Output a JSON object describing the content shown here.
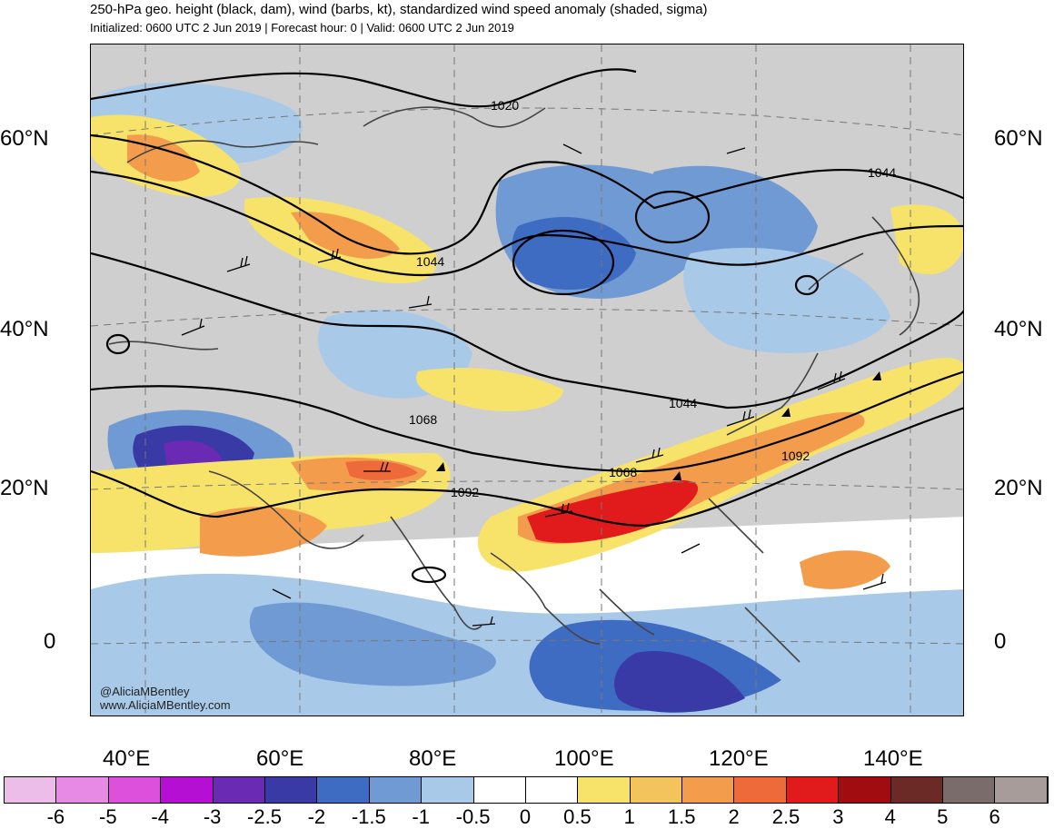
{
  "header": {
    "title": "250-hPa geo. height (black, dam), wind (barbs, kt), standardized wind speed anomaly (shaded, sigma)",
    "subtitle": "Initialized: 0600 UTC 2 Jun 2019 | Forecast hour: 0 | Valid: 0600 UTC 2 Jun 2019"
  },
  "axes": {
    "lat_labels": [
      "60°N",
      "40°N",
      "20°N",
      "0"
    ],
    "lon_labels": [
      "40°E",
      "60°E",
      "80°E",
      "100°E",
      "120°E",
      "140°E"
    ]
  },
  "contours": {
    "labels": [
      "1020",
      "1044",
      "1044",
      "1044",
      "1068",
      "1068",
      "1092",
      "1092"
    ]
  },
  "credit": {
    "handle": "@AliciaMBentley",
    "site": "www.AliciaMBentley.com"
  },
  "colorbar": {
    "colors": [
      "#ecbde9",
      "#e68ae6",
      "#dc50dc",
      "#b40fd2",
      "#6a2ab4",
      "#3a3aa6",
      "#3f6cc3",
      "#6f9ad4",
      "#a8c9e8",
      "#ffffff",
      "#ffffff",
      "#f8e36a",
      "#f3c45c",
      "#f29c4c",
      "#ef6a3b",
      "#e11b1b",
      "#a00c10",
      "#6c2a26",
      "#7a6c6a",
      "#a89c9a"
    ],
    "labels": [
      "-6",
      "-5",
      "-4",
      "-3",
      "-2.5",
      "-2",
      "-1.5",
      "-1",
      "-0.5",
      "0",
      "0.5",
      "1",
      "1.5",
      "2",
      "2.5",
      "3",
      "4",
      "5",
      "6"
    ]
  }
}
